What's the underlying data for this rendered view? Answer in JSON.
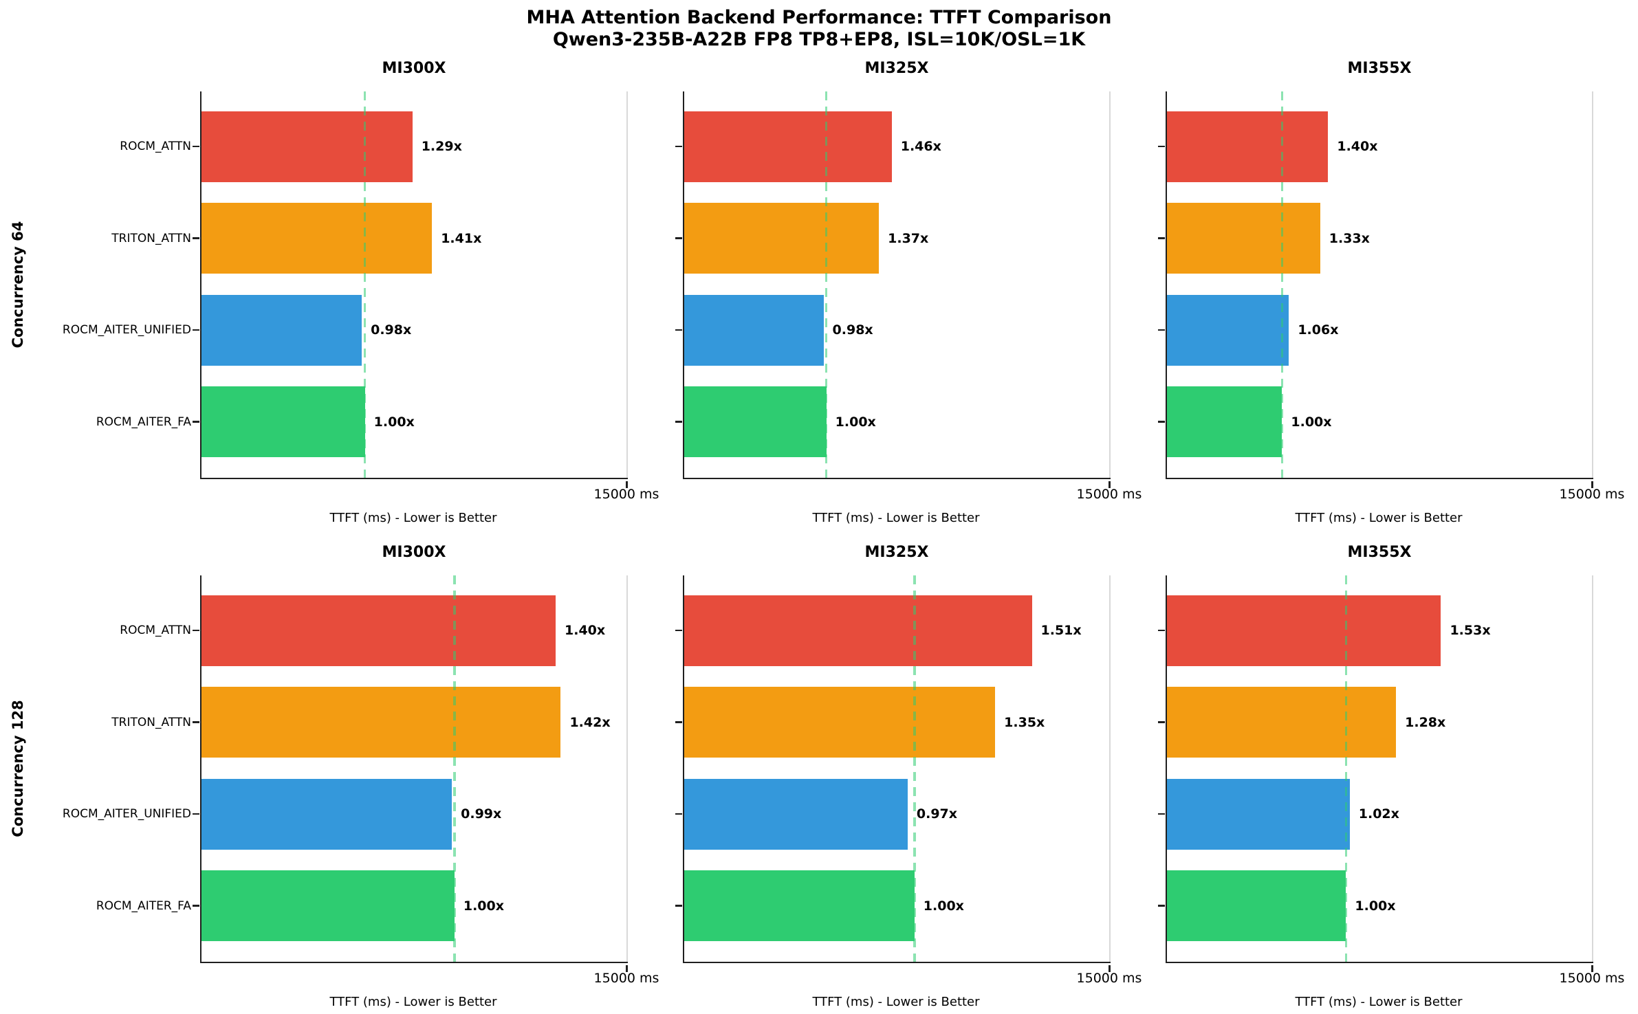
{
  "chart_data": {
    "type": "bar",
    "orientation": "horizontal",
    "title": "MHA Attention Backend Performance: TTFT Comparison",
    "subtitle": "Qwen3-235B-A22B FP8 TP8+EP8, ISL=10K/OSL=1K",
    "xlabel": "TTFT (ms) - Lower is Better",
    "x_max_label": "15000 ms",
    "xlim": [
      0,
      15000
    ],
    "grid": "single vertical gridline at 15000",
    "legend_position": "none",
    "categories": [
      "ROCM_ATTN",
      "TRITON_ATTN",
      "ROCM_AITER_UNIFIED",
      "ROCM_AITER_FA"
    ],
    "colors": {
      "ROCM_ATTN": "#e74c3c",
      "TRITON_ATTN": "#f39c12",
      "ROCM_AITER_UNIFIED": "#3498db",
      "ROCM_AITER_FA": "#2ecc71",
      "baseline": "rgba(46,204,113,0.55)",
      "gridline": "#d9d9d9",
      "spine": "#1f1f1f"
    },
    "rows": [
      {
        "label": "Concurrency 64",
        "panels": [
          {
            "title": "MI300X",
            "baseline_ms": 5750,
            "bars": [
              {
                "backend": "ROCM_ATTN",
                "ttft_ms": 7420,
                "ratio": "1.29x"
              },
              {
                "backend": "TRITON_ATTN",
                "ttft_ms": 8110,
                "ratio": "1.41x"
              },
              {
                "backend": "ROCM_AITER_UNIFIED",
                "ttft_ms": 5640,
                "ratio": "0.98x"
              },
              {
                "backend": "ROCM_AITER_FA",
                "ttft_ms": 5750,
                "ratio": "1.00x"
              }
            ]
          },
          {
            "title": "MI325X",
            "baseline_ms": 5000,
            "bars": [
              {
                "backend": "ROCM_ATTN",
                "ttft_ms": 7300,
                "ratio": "1.46x"
              },
              {
                "backend": "TRITON_ATTN",
                "ttft_ms": 6850,
                "ratio": "1.37x"
              },
              {
                "backend": "ROCM_AITER_UNIFIED",
                "ttft_ms": 4900,
                "ratio": "0.98x"
              },
              {
                "backend": "ROCM_AITER_FA",
                "ttft_ms": 5000,
                "ratio": "1.00x"
              }
            ]
          },
          {
            "title": "MI355X",
            "baseline_ms": 4050,
            "bars": [
              {
                "backend": "ROCM_ATTN",
                "ttft_ms": 5670,
                "ratio": "1.40x"
              },
              {
                "backend": "TRITON_ATTN",
                "ttft_ms": 5390,
                "ratio": "1.33x"
              },
              {
                "backend": "ROCM_AITER_UNIFIED",
                "ttft_ms": 4290,
                "ratio": "1.06x"
              },
              {
                "backend": "ROCM_AITER_FA",
                "ttft_ms": 4050,
                "ratio": "1.00x"
              }
            ]
          }
        ]
      },
      {
        "label": "Concurrency 128",
        "panels": [
          {
            "title": "MI300X",
            "baseline_ms": 8900,
            "bars": [
              {
                "backend": "ROCM_ATTN",
                "ttft_ms": 12460,
                "ratio": "1.40x"
              },
              {
                "backend": "TRITON_ATTN",
                "ttft_ms": 12640,
                "ratio": "1.42x"
              },
              {
                "backend": "ROCM_AITER_UNIFIED",
                "ttft_ms": 8810,
                "ratio": "0.99x"
              },
              {
                "backend": "ROCM_AITER_FA",
                "ttft_ms": 8900,
                "ratio": "1.00x"
              }
            ]
          },
          {
            "title": "MI325X",
            "baseline_ms": 8100,
            "bars": [
              {
                "backend": "ROCM_ATTN",
                "ttft_ms": 12230,
                "ratio": "1.51x"
              },
              {
                "backend": "TRITON_ATTN",
                "ttft_ms": 10940,
                "ratio": "1.35x"
              },
              {
                "backend": "ROCM_AITER_UNIFIED",
                "ttft_ms": 7860,
                "ratio": "0.97x"
              },
              {
                "backend": "ROCM_AITER_FA",
                "ttft_ms": 8100,
                "ratio": "1.00x"
              }
            ]
          },
          {
            "title": "MI355X",
            "baseline_ms": 6300,
            "bars": [
              {
                "backend": "ROCM_ATTN",
                "ttft_ms": 9640,
                "ratio": "1.53x"
              },
              {
                "backend": "TRITON_ATTN",
                "ttft_ms": 8060,
                "ratio": "1.28x"
              },
              {
                "backend": "ROCM_AITER_UNIFIED",
                "ttft_ms": 6430,
                "ratio": "1.02x"
              },
              {
                "backend": "ROCM_AITER_FA",
                "ttft_ms": 6300,
                "ratio": "1.00x"
              }
            ]
          }
        ]
      }
    ]
  }
}
